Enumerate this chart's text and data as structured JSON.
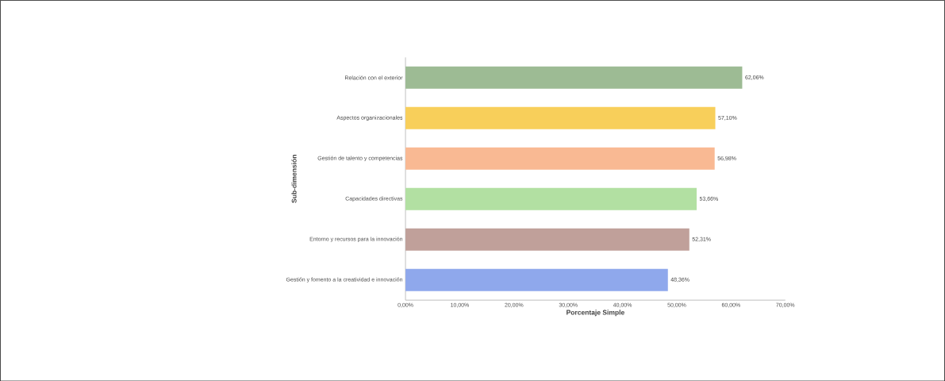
{
  "chart_data": {
    "type": "bar",
    "orientation": "horizontal",
    "xlabel": "Porcentaje Simple",
    "ylabel": "Sub-dimensión",
    "categories": [
      "Relación con el exterior",
      "Aspectos organizacionales",
      "Gestión de talento y competencias",
      "Capacidades directivas",
      "Entorno y recursos para la innovación",
      "Gestión y fomento a la creatividad e innovación"
    ],
    "values": [
      62.06,
      57.1,
      56.98,
      53.66,
      52.31,
      48.36
    ],
    "value_labels": [
      "62,06%",
      "57,10%",
      "56,98%",
      "53,66%",
      "52,31%",
      "48,36%"
    ],
    "colors": [
      "#9dbb94",
      "#f8cf5a",
      "#f9b993",
      "#b2e0a2",
      "#c0a09a",
      "#8fa8ec"
    ],
    "xlim": [
      0,
      70
    ],
    "xticks": [
      {
        "value": 0,
        "label": "0,00%"
      },
      {
        "value": 10,
        "label": "10,00%"
      },
      {
        "value": 20,
        "label": "20,00%"
      },
      {
        "value": 30,
        "label": "30,00%"
      },
      {
        "value": 40,
        "label": "40,00%"
      },
      {
        "value": 50,
        "label": "50,00%"
      },
      {
        "value": 60,
        "label": "60,00%"
      },
      {
        "value": 70,
        "label": "70,00%"
      }
    ],
    "grid": false
  }
}
